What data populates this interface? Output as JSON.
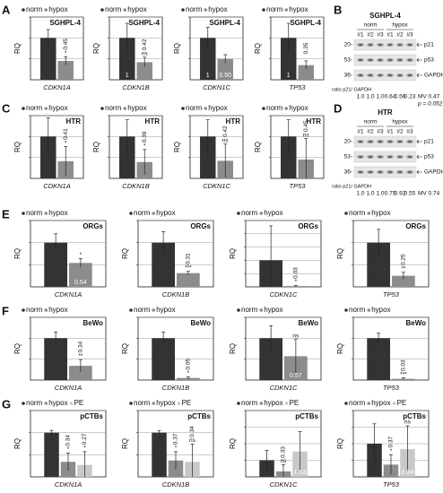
{
  "panel_labels": [
    "A",
    "B",
    "C",
    "D",
    "E",
    "F",
    "G"
  ],
  "chart_data": [
    {
      "type": "bar",
      "title": "SGHPL-4",
      "ylabel": "RQ",
      "xlabel": "CDKN1A",
      "ylim": [
        0,
        1.5
      ],
      "yticks": [
        0.5,
        1,
        1.5
      ],
      "grid": true,
      "series": [
        {
          "name": "norm",
          "color": "#333333",
          "values": [
            1
          ],
          "errors": [
            0.2
          ]
        },
        {
          "name": "hypox",
          "color": "#8c8c8c",
          "values": [
            0.45
          ],
          "errors": [
            0.1
          ],
          "value_labels": [
            "0.45"
          ],
          "significance": "*"
        }
      ]
    },
    {
      "type": "bar",
      "title": "SGHPL-4",
      "ylabel": "RQ",
      "xlabel": "CDKN1B",
      "ylim": [
        0,
        1.5
      ],
      "yticks": [
        0.5,
        1,
        1.5
      ],
      "grid": true,
      "series": [
        {
          "name": "norm",
          "color": "#333333",
          "values": [
            1
          ],
          "errors": [
            0.35
          ],
          "value_labels": [
            "1"
          ]
        },
        {
          "name": "hypox",
          "color": "#8c8c8c",
          "values": [
            0.42
          ],
          "errors": [
            0.12
          ],
          "value_labels": [
            "0.42"
          ],
          "significance": "ns"
        }
      ]
    },
    {
      "type": "bar",
      "title": "SGHPL-4",
      "ylabel": "RQ",
      "xlabel": "CDKN1C",
      "ylim": [
        0,
        1.5
      ],
      "yticks": [
        0.5,
        1,
        1.5
      ],
      "grid": true,
      "series": [
        {
          "name": "norm",
          "color": "#333333",
          "values": [
            1
          ],
          "errors": [
            0.25
          ],
          "value_labels": [
            "1"
          ]
        },
        {
          "name": "hypox",
          "color": "#8c8c8c",
          "values": [
            0.5
          ],
          "errors": [
            0.1
          ],
          "value_labels": [
            "0.50"
          ]
        }
      ]
    },
    {
      "type": "bar",
      "title": "SGHPL-4",
      "ylabel": "RQ",
      "xlabel": "TP53",
      "ylim": [
        0,
        1.5
      ],
      "yticks": [
        0.5,
        1,
        1.5
      ],
      "grid": true,
      "series": [
        {
          "name": "norm",
          "color": "#333333",
          "values": [
            1
          ],
          "errors": [
            0.35
          ],
          "value_labels": [
            "1"
          ]
        },
        {
          "name": "hypox",
          "color": "#8c8c8c",
          "values": [
            0.35
          ],
          "errors": [
            0.1
          ],
          "value_labels": [
            "0.35"
          ]
        }
      ]
    },
    {
      "type": "bar",
      "title": "HTR",
      "ylabel": "RQ",
      "xlabel": "CDKN1A",
      "ylim": [
        0,
        1.5
      ],
      "yticks": [
        0.5,
        1,
        1.5
      ],
      "grid": true,
      "series": [
        {
          "name": "norm",
          "color": "#333333",
          "values": [
            1
          ],
          "errors": [
            0.45
          ]
        },
        {
          "name": "hypox",
          "color": "#8c8c8c",
          "values": [
            0.41
          ],
          "errors": [
            0.35
          ],
          "value_labels": [
            "0.41"
          ],
          "significance": "*"
        }
      ]
    },
    {
      "type": "bar",
      "title": "HTR",
      "ylabel": "RQ",
      "xlabel": "CDKN1B",
      "ylim": [
        0,
        1.5
      ],
      "yticks": [
        0.5,
        1,
        1.5
      ],
      "grid": true,
      "series": [
        {
          "name": "norm",
          "color": "#333333",
          "values": [
            1
          ],
          "errors": [
            0.4
          ]
        },
        {
          "name": "hypox",
          "color": "#8c8c8c",
          "values": [
            0.39
          ],
          "errors": [
            0.3
          ],
          "value_labels": [
            "0.39"
          ],
          "significance": "*"
        }
      ]
    },
    {
      "type": "bar",
      "title": "HTR",
      "ylabel": "RQ",
      "xlabel": "CDKN1C",
      "ylim": [
        0,
        1.5
      ],
      "yticks": [
        0.5,
        1,
        1.5
      ],
      "grid": true,
      "series": [
        {
          "name": "norm",
          "color": "#333333",
          "values": [
            1
          ],
          "errors": [
            0.4
          ]
        },
        {
          "name": "hypox",
          "color": "#8c8c8c",
          "values": [
            0.42
          ],
          "errors": [
            0.4
          ],
          "value_labels": [
            "0.42"
          ],
          "significance": "ns"
        }
      ]
    },
    {
      "type": "bar",
      "title": "HTR",
      "ylabel": "RQ",
      "xlabel": "TP53",
      "ylim": [
        0,
        1.5
      ],
      "yticks": [
        0.5,
        1,
        1.5
      ],
      "grid": true,
      "series": [
        {
          "name": "norm",
          "color": "#333333",
          "values": [
            1
          ],
          "errors": [
            0.4
          ]
        },
        {
          "name": "hypox",
          "color": "#8c8c8c",
          "values": [
            0.45
          ],
          "errors": [
            0.5
          ],
          "value_labels": [
            "0.45"
          ],
          "significance": "ns"
        }
      ]
    },
    {
      "type": "bar",
      "title": "ORGs",
      "ylabel": "RQ",
      "xlabel": "CDKN1A",
      "ylim": [
        0,
        1.5
      ],
      "yticks": [
        0.5,
        1,
        1.5
      ],
      "grid": true,
      "series": [
        {
          "name": "norm",
          "color": "#333333",
          "values": [
            1
          ],
          "errors": [
            0.2
          ]
        },
        {
          "name": "hypox",
          "color": "#8c8c8c",
          "values": [
            0.54
          ],
          "errors": [
            0.1
          ],
          "value_labels": [
            "0.54"
          ],
          "significance": "*"
        }
      ]
    },
    {
      "type": "bar",
      "title": "ORGs",
      "ylabel": "RQ",
      "xlabel": "CDKN1B",
      "ylim": [
        0,
        1.5
      ],
      "yticks": [
        0.5,
        1,
        1.5
      ],
      "grid": true,
      "series": [
        {
          "name": "norm",
          "color": "#333333",
          "values": [
            1
          ],
          "errors": [
            0.25
          ]
        },
        {
          "name": "hypox",
          "color": "#8c8c8c",
          "values": [
            0.31
          ],
          "errors": [
            0.04
          ],
          "value_labels": [
            "0.31"
          ],
          "significance": "***"
        }
      ]
    },
    {
      "type": "bar",
      "title": "ORGs",
      "ylabel": "RQ",
      "xlabel": "CDKN1C",
      "ylim": [
        0,
        2.5
      ],
      "yticks": [
        0.5,
        1,
        1.5,
        2,
        2.5
      ],
      "grid": true,
      "series": [
        {
          "name": "norm",
          "color": "#333333",
          "values": [
            1
          ],
          "errors": [
            1.3
          ]
        },
        {
          "name": "hypox",
          "color": "#8c8c8c",
          "values": [
            0.03
          ],
          "errors": [
            0.02
          ],
          "value_labels": [
            "0.03"
          ],
          "significance": "*"
        }
      ]
    },
    {
      "type": "bar",
      "title": "ORGs",
      "ylabel": "RQ",
      "xlabel": "TP53",
      "ylim": [
        0,
        1.5
      ],
      "yticks": [
        0.5,
        1,
        1.5
      ],
      "grid": true,
      "series": [
        {
          "name": "norm",
          "color": "#333333",
          "values": [
            1
          ],
          "errors": [
            0.3
          ]
        },
        {
          "name": "hypox",
          "color": "#8c8c8c",
          "values": [
            0.25
          ],
          "errors": [
            0.08
          ],
          "value_labels": [
            "0.25"
          ],
          "significance": "**"
        }
      ]
    },
    {
      "type": "bar",
      "title": "BeWo",
      "ylabel": "RQ",
      "xlabel": "CDKN1A",
      "ylim": [
        0,
        1.5
      ],
      "yticks": [
        0.5,
        1,
        1.5
      ],
      "grid": true,
      "series": [
        {
          "name": "norm",
          "color": "#333333",
          "values": [
            1
          ],
          "errors": [
            0.15
          ]
        },
        {
          "name": "hypox",
          "color": "#8c8c8c",
          "values": [
            0.34
          ],
          "errors": [
            0.15
          ],
          "value_labels": [
            "0.34"
          ],
          "significance": "**"
        }
      ]
    },
    {
      "type": "bar",
      "title": "BeWo",
      "ylabel": "RQ",
      "xlabel": "CDKN1B",
      "ylim": [
        0,
        1.5
      ],
      "yticks": [
        0.5,
        1,
        1.5
      ],
      "grid": true,
      "series": [
        {
          "name": "norm",
          "color": "#333333",
          "values": [
            1
          ],
          "errors": [
            0.15
          ]
        },
        {
          "name": "hypox",
          "color": "#8c8c8c",
          "values": [
            0.05
          ],
          "errors": [
            0.03
          ],
          "value_labels": [
            "0.05"
          ],
          "significance": "*"
        }
      ]
    },
    {
      "type": "bar",
      "title": "BeWo",
      "ylabel": "RQ",
      "xlabel": "CDKN1C",
      "ylim": [
        0,
        1.5
      ],
      "yticks": [
        0.5,
        1,
        1.5
      ],
      "grid": true,
      "series": [
        {
          "name": "norm",
          "color": "#333333",
          "values": [
            1
          ],
          "errors": [
            0.3
          ]
        },
        {
          "name": "hypox",
          "color": "#8c8c8c",
          "values": [
            0.57
          ],
          "errors": [
            0.4
          ],
          "value_labels": [
            "0.57"
          ],
          "significance": "ns"
        }
      ]
    },
    {
      "type": "bar",
      "title": "BeWo",
      "ylabel": "RQ",
      "xlabel": "TP53",
      "ylim": [
        0,
        1.5
      ],
      "yticks": [
        0.5,
        1,
        1.5
      ],
      "grid": true,
      "series": [
        {
          "name": "norm",
          "color": "#333333",
          "values": [
            1
          ],
          "errors": [
            0.12
          ]
        },
        {
          "name": "hypox",
          "color": "#8c8c8c",
          "values": [
            0.03
          ],
          "errors": [
            0.02
          ],
          "value_labels": [
            "0.03"
          ],
          "significance": "***"
        }
      ]
    },
    {
      "type": "bar",
      "title": "pCTBs",
      "ylabel": "RQ",
      "xlabel": "CDKN1A",
      "ylim": [
        0,
        1.5
      ],
      "yticks": [
        0.5,
        1,
        1.5
      ],
      "grid": true,
      "series": [
        {
          "name": "norm",
          "color": "#333333",
          "values": [
            1
          ],
          "errors": [
            0.05
          ]
        },
        {
          "name": "hypox",
          "color": "#8c8c8c",
          "values": [
            0.34
          ],
          "errors": [
            0.2
          ],
          "value_labels": [
            "0.34"
          ],
          "significance": "*"
        },
        {
          "name": "PE",
          "color": "#c8c8c8",
          "values": [
            0.27
          ],
          "errors": [
            0.3
          ],
          "value_labels": [
            "0.27"
          ],
          "significance": "*"
        }
      ]
    },
    {
      "type": "bar",
      "title": "pCTBs",
      "ylabel": "RQ",
      "xlabel": "CDKN1B",
      "ylim": [
        0,
        1.5
      ],
      "yticks": [
        0.5,
        1,
        1.5
      ],
      "grid": true,
      "series": [
        {
          "name": "norm",
          "color": "#333333",
          "values": [
            1
          ],
          "errors": [
            0.05
          ]
        },
        {
          "name": "hypox",
          "color": "#8c8c8c",
          "values": [
            0.37
          ],
          "errors": [
            0.2
          ],
          "value_labels": [
            "0.37"
          ],
          "significance": "*"
        },
        {
          "name": "PE",
          "color": "#c8c8c8",
          "values": [
            0.34
          ],
          "errors": [
            0.4
          ],
          "value_labels": [
            "0.34"
          ],
          "significance": "ns"
        }
      ]
    },
    {
      "type": "bar",
      "title": "pCTBs",
      "ylabel": "RQ",
      "xlabel": "CDKN1C",
      "ylim": [
        0,
        4
      ],
      "yticks": [
        1,
        2,
        3,
        4
      ],
      "grid": true,
      "series": [
        {
          "name": "norm",
          "color": "#333333",
          "values": [
            1
          ],
          "errors": [
            0.6
          ]
        },
        {
          "name": "hypox",
          "color": "#8c8c8c",
          "values": [
            0.33
          ],
          "errors": [
            0.4
          ],
          "value_labels": [
            "0.33"
          ],
          "significance": "ns"
        },
        {
          "name": "PE",
          "color": "#c8c8c8",
          "values": [
            1.53
          ],
          "errors": [
            1.2
          ],
          "value_labels": [
            "1.53"
          ]
        }
      ]
    },
    {
      "type": "bar",
      "title": "pCTBs",
      "ylabel": "RQ",
      "xlabel": "TP53",
      "ylim": [
        0,
        2
      ],
      "yticks": [
        0.5,
        1,
        1.5,
        2
      ],
      "grid": true,
      "series": [
        {
          "name": "norm",
          "color": "#333333",
          "values": [
            1
          ],
          "errors": [
            0.6
          ]
        },
        {
          "name": "hypox",
          "color": "#8c8c8c",
          "values": [
            0.37
          ],
          "errors": [
            0.3
          ],
          "value_labels": [
            "0.37"
          ],
          "significance": "*"
        },
        {
          "name": "PE",
          "color": "#c8c8c8",
          "values": [
            0.84
          ],
          "errors": [
            0.7
          ],
          "value_labels": [
            "0.84"
          ],
          "significance": "ns"
        }
      ]
    }
  ],
  "blots": [
    {
      "title": "SGHPL-4",
      "groups": [
        "norm",
        "hypox"
      ],
      "lanes": [
        "#1",
        "#2",
        "#3",
        "#1",
        "#2",
        "#3"
      ],
      "markers": [
        "20-",
        "53-",
        "36-"
      ],
      "bands": [
        "p21",
        "p53",
        "GAPDH"
      ],
      "ratio_label": "ratio p21/ GAPDH",
      "ratios": [
        "1.0",
        "1.0",
        "1.0",
        "0.64",
        "0.56",
        "0.23"
      ],
      "notes": [
        "MV 0.47",
        "p = 0.052"
      ]
    },
    {
      "title": "HTR",
      "groups": [
        "norm",
        "hypox"
      ],
      "lanes": [
        "#1",
        "#2",
        "#3",
        "#1",
        "#2",
        "#3"
      ],
      "markers": [
        "20-",
        "53-",
        "36-"
      ],
      "bands": [
        "p21",
        "p53",
        "GAPDH"
      ],
      "ratio_label": "ratio p21/ GAPDH",
      "ratios": [
        "1.0",
        "1.0",
        "1.0",
        "0.75",
        "0.92",
        "0.55"
      ],
      "notes": [
        "MV 0.74"
      ]
    }
  ]
}
